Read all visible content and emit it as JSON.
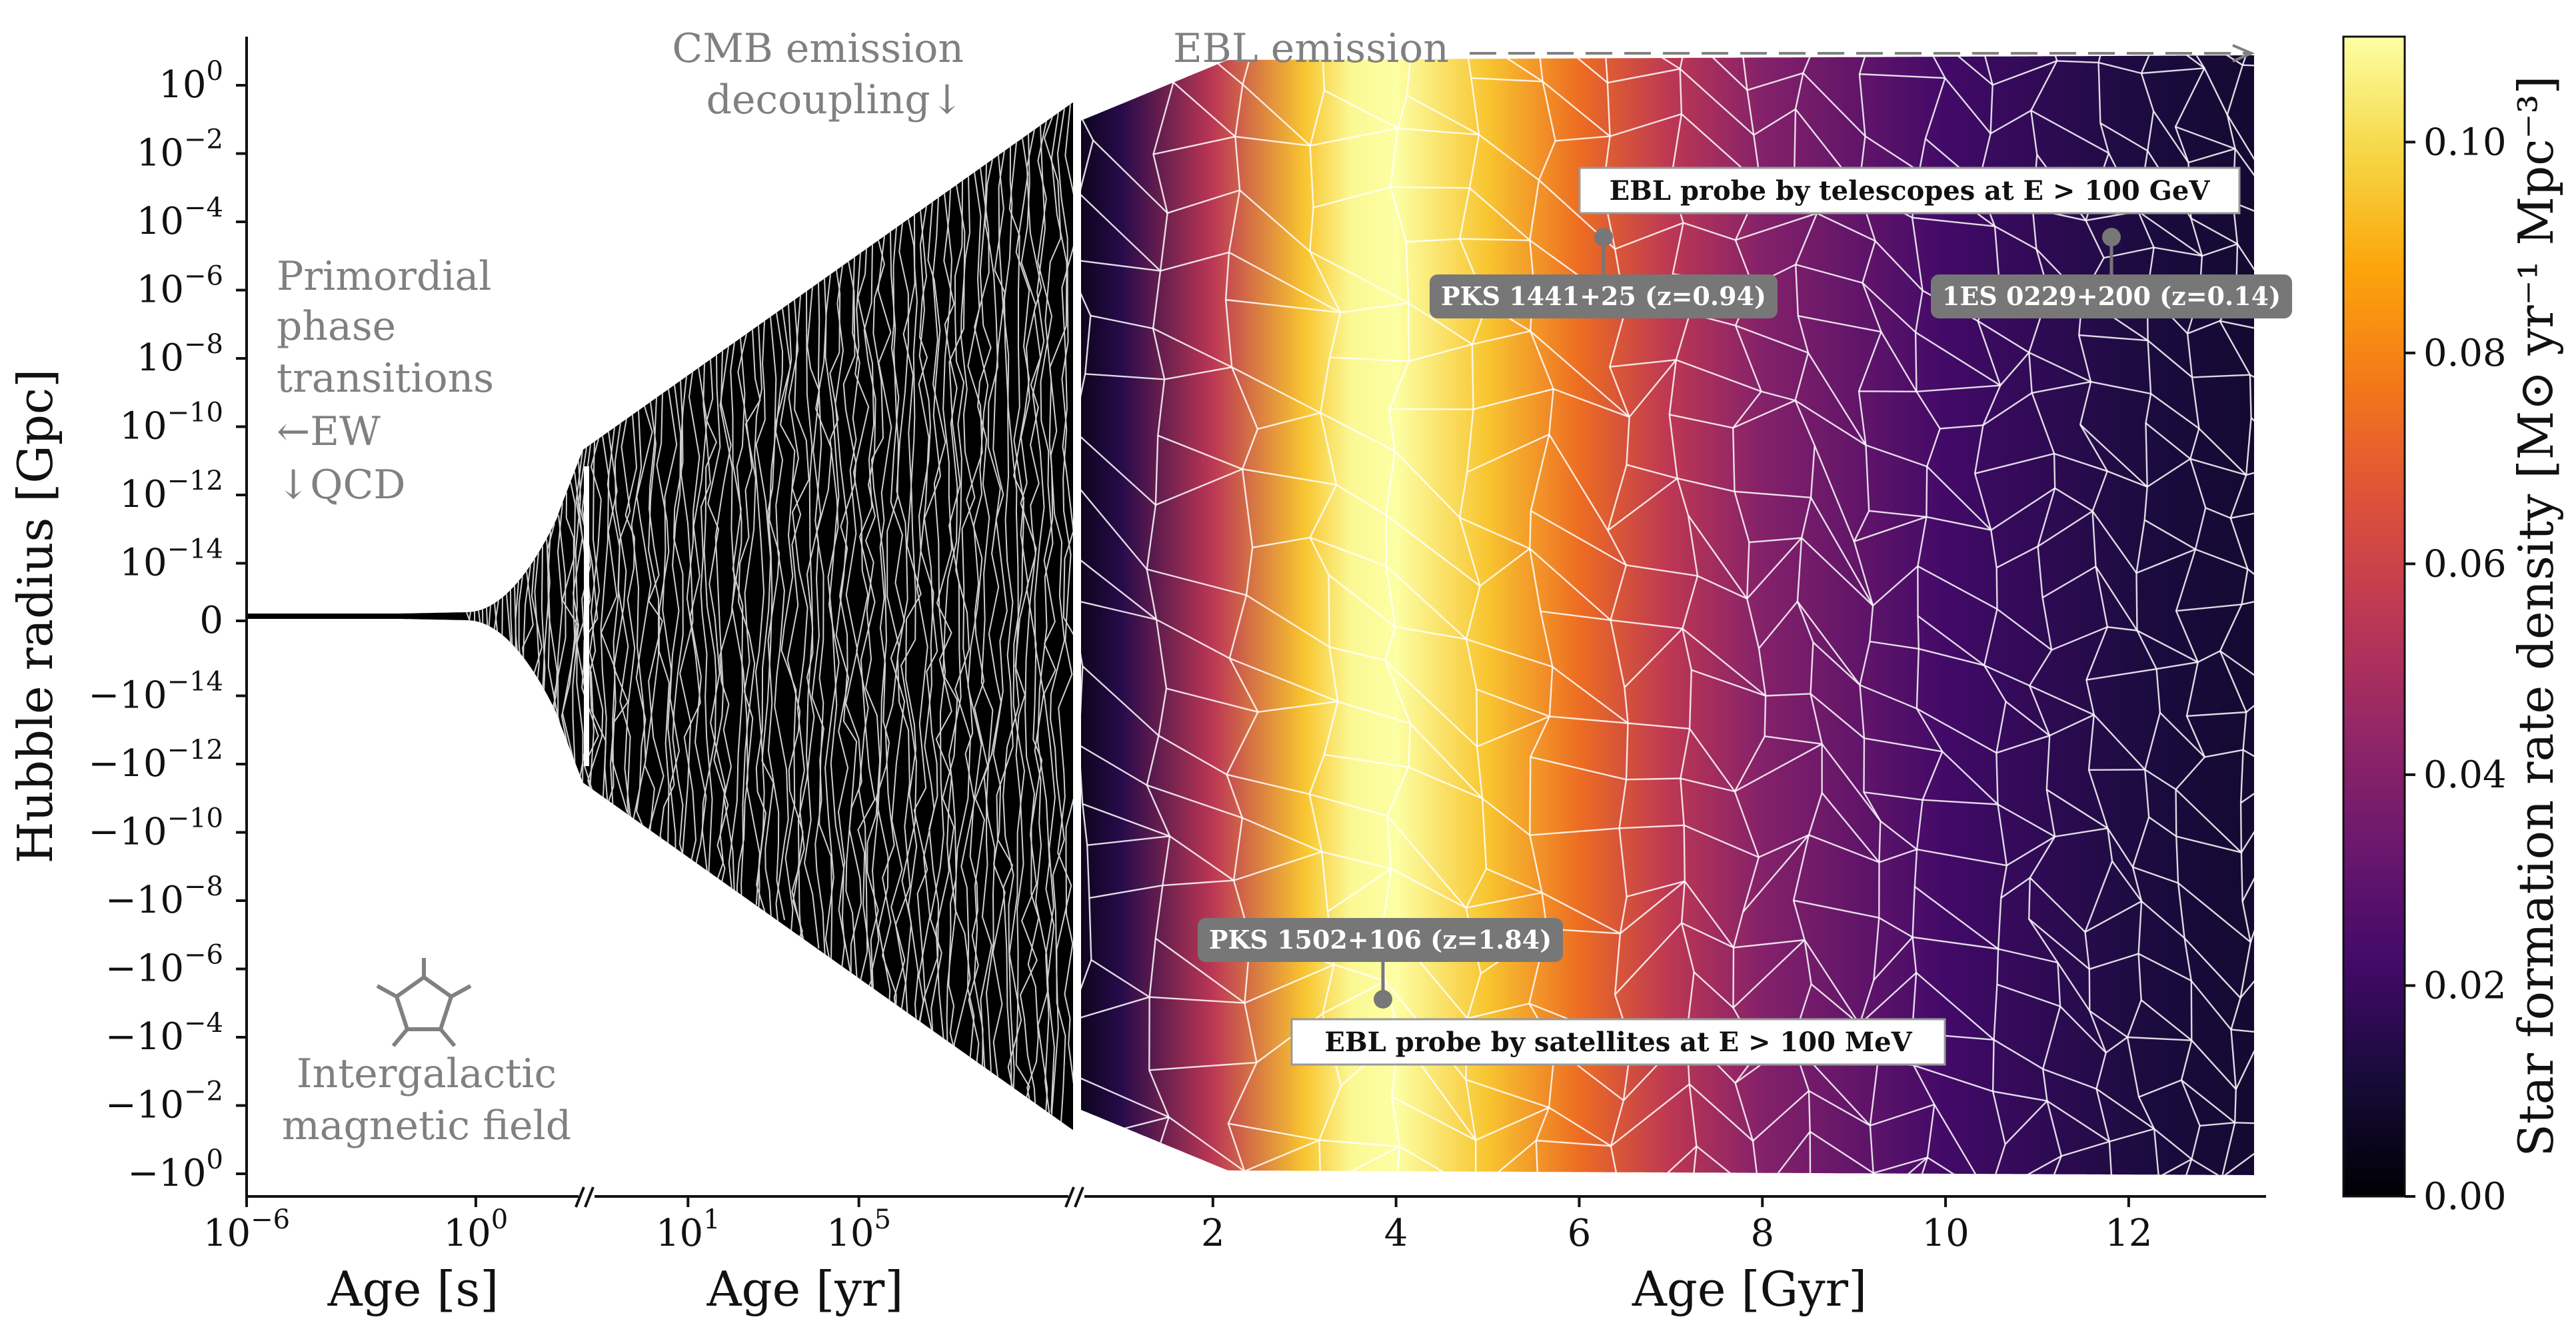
{
  "chart_data": {
    "type": "area",
    "xlabels": [
      "Age [s]",
      "Age [yr]",
      "Age [Gyr]"
    ],
    "ylabel": "Hubble radius [Gpc]",
    "x_segments": [
      {
        "unit": "s",
        "scale": "log",
        "range": [
          -6,
          2.2
        ],
        "ticks": [
          {
            "v": -6,
            "label": "10",
            "exp": "−6"
          },
          {
            "v": 0,
            "label": "10",
            "exp": "0"
          }
        ]
      },
      {
        "unit": "yr",
        "scale": "log",
        "range": [
          -2,
          9
        ],
        "ticks": [
          {
            "v": 1,
            "label": "10",
            "exp": "1"
          },
          {
            "v": 5,
            "label": "10",
            "exp": "5"
          }
        ]
      },
      {
        "unit": "Gyr",
        "scale": "linear",
        "range": [
          0,
          13.5
        ],
        "ticks": [
          {
            "v": 2,
            "label": "2"
          },
          {
            "v": 4,
            "label": "4"
          },
          {
            "v": 6,
            "label": "6"
          },
          {
            "v": 8,
            "label": "8"
          },
          {
            "v": 10,
            "label": "10"
          },
          {
            "v": 12,
            "label": "12"
          }
        ]
      }
    ],
    "yticks": [
      {
        "label": "10",
        "exp": "0"
      },
      {
        "label": "10",
        "exp": "−2"
      },
      {
        "label": "10",
        "exp": "−4"
      },
      {
        "label": "10",
        "exp": "−6"
      },
      {
        "label": "10",
        "exp": "−8"
      },
      {
        "label": "10",
        "exp": "−10"
      },
      {
        "label": "10",
        "exp": "−12"
      },
      {
        "label": "10",
        "exp": "−14"
      },
      {
        "label": "0",
        "exp": ""
      },
      {
        "label": "−10",
        "exp": "−14"
      },
      {
        "label": "−10",
        "exp": "−12"
      },
      {
        "label": "−10",
        "exp": "−10"
      },
      {
        "label": "−10",
        "exp": "−8"
      },
      {
        "label": "−10",
        "exp": "−6"
      },
      {
        "label": "−10",
        "exp": "−4"
      },
      {
        "label": "−10",
        "exp": "−2"
      },
      {
        "label": "−10",
        "exp": "0"
      }
    ],
    "colorbar": {
      "label": "Star formation rate density",
      "label_units": "[M⊙ yr⁻¹ Mpc⁻³]",
      "range": [
        0,
        0.11
      ],
      "ticks": [
        "0.00",
        "0.02",
        "0.04",
        "0.06",
        "0.08",
        "0.10"
      ],
      "colormap": "inferno"
    },
    "sfrd_vs_age_gyr": {
      "x": [
        0.3,
        1,
        2,
        3,
        3.5,
        4,
        5,
        6,
        7,
        8,
        10,
        12,
        13.5
      ],
      "y": [
        0.0,
        0.015,
        0.055,
        0.095,
        0.108,
        0.11,
        0.095,
        0.074,
        0.055,
        0.04,
        0.022,
        0.013,
        0.009
      ]
    },
    "annotations": {
      "primordial": [
        "Primordial",
        "phase",
        "transitions",
        "←EW",
        "↓QCD"
      ],
      "magnetic": [
        "Intergalactic",
        "magnetic field"
      ],
      "cmb": [
        "CMB emission",
        "decoupling↓"
      ],
      "ebl_emission": "EBL emission",
      "telescopes_box": "EBL probe by telescopes at E > 100 GeV",
      "satellites_box": "EBL probe by satellites at E > 100 MeV"
    },
    "sources": [
      {
        "name": "PKS 1441+25 (z=0.94)",
        "age_gyr": 6.0,
        "probe": "telescopes"
      },
      {
        "name": "1ES 0229+200 (z=0.14)",
        "age_gyr": 11.7,
        "probe": "telescopes"
      },
      {
        "name": "PKS 1502+106 (z=1.84)",
        "age_gyr": 3.5,
        "probe": "satellites"
      }
    ]
  }
}
